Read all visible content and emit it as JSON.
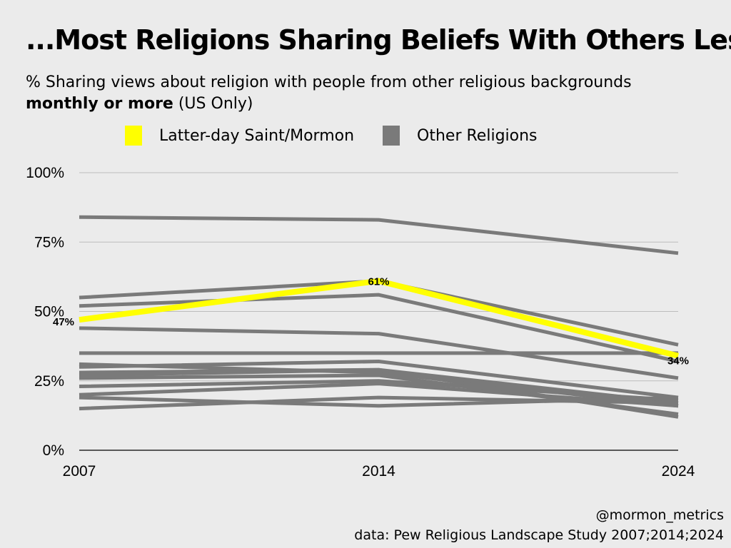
{
  "header": {
    "title": "...Most Religions Sharing Beliefs With Others Less",
    "subtitle_line1": "% Sharing views about religion with people from other religious backgrounds",
    "subtitle_bold": "monthly or more",
    "subtitle_rest": " (US Only)"
  },
  "legend": {
    "lds_label": "Latter-day Saint/Mormon",
    "other_label": "Other Religions"
  },
  "footer": {
    "handle": "@mormon_metrics",
    "source": "data: Pew Religious Landscape Study 2007;2014;2024"
  },
  "colors": {
    "background": "#ebebeb",
    "highlight": "#ffff00",
    "other": "#7a7a7a",
    "grid": "#bdbdbd"
  },
  "chart_data": {
    "type": "line",
    "title": "...Most Religions Sharing Beliefs With Others Less",
    "xlabel": "",
    "ylabel": "",
    "x": [
      "2007",
      "2014",
      "2024"
    ],
    "ylim": [
      0,
      100
    ],
    "yticks": [
      0,
      25,
      50,
      75,
      100
    ],
    "ytick_labels": [
      "0%",
      "25%",
      "50%",
      "75%",
      "100%"
    ],
    "grid": true,
    "series": [
      {
        "name": "Other Religions",
        "values": [
          84,
          83,
          71
        ]
      },
      {
        "name": "Other Religions",
        "values": [
          55,
          61,
          38
        ]
      },
      {
        "name": "Other Religions",
        "values": [
          52,
          56,
          32
        ]
      },
      {
        "name": "Other Religions",
        "values": [
          44,
          42,
          26
        ]
      },
      {
        "name": "Other Religions",
        "values": [
          35,
          35,
          35
        ]
      },
      {
        "name": "Other Religions",
        "values": [
          31,
          28,
          16
        ]
      },
      {
        "name": "Other Religions",
        "values": [
          30,
          32,
          19
        ]
      },
      {
        "name": "Other Religions",
        "values": [
          28,
          29,
          12
        ]
      },
      {
        "name": "Other Religions",
        "values": [
          27,
          29,
          17
        ]
      },
      {
        "name": "Other Religions",
        "values": [
          26,
          27,
          13
        ]
      },
      {
        "name": "Other Religions",
        "values": [
          23,
          25,
          18
        ]
      },
      {
        "name": "Other Religions",
        "values": [
          20,
          24,
          16
        ]
      },
      {
        "name": "Other Religions",
        "values": [
          19,
          16,
          19
        ]
      },
      {
        "name": "Other Religions",
        "values": [
          15,
          19,
          17
        ]
      },
      {
        "name": "Latter-day Saint/Mormon",
        "values": [
          47,
          61,
          34
        ],
        "highlight": true
      }
    ],
    "data_labels": [
      {
        "series": "Latter-day Saint/Mormon",
        "x": "2007",
        "value": 47,
        "text": "47%"
      },
      {
        "series": "Latter-day Saint/Mormon",
        "x": "2014",
        "value": 61,
        "text": "61%"
      },
      {
        "series": "Latter-day Saint/Mormon",
        "x": "2024",
        "value": 34,
        "text": "34%"
      }
    ]
  }
}
